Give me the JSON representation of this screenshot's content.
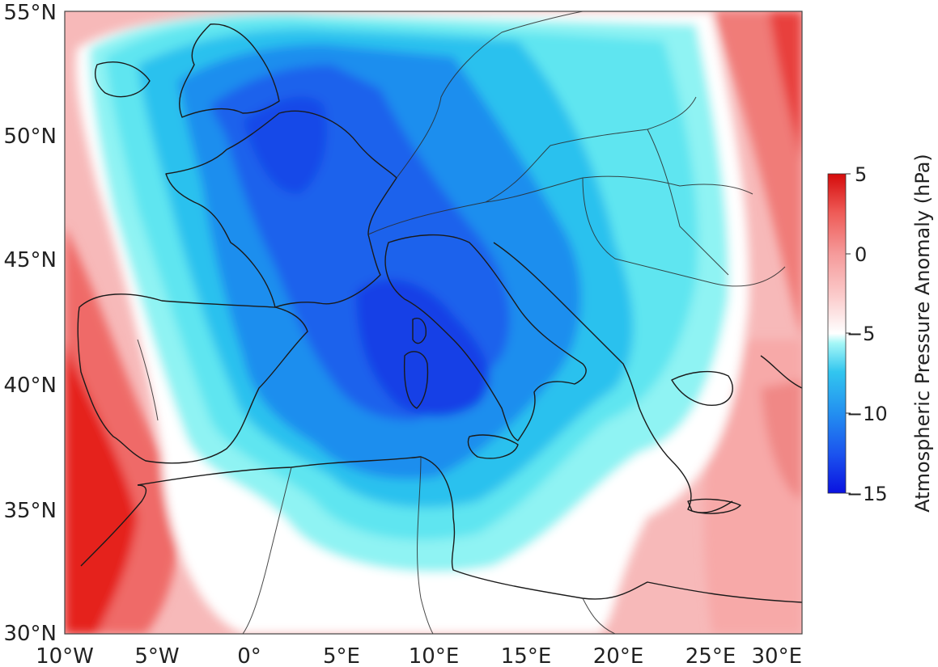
{
  "map": {
    "lat_labels": [
      "55°N",
      "50°N",
      "45°N",
      "40°N",
      "35°N",
      "30°N"
    ],
    "lon_labels": [
      "10°W",
      "5°W",
      "0°",
      "5°E",
      "10°E",
      "15°E",
      "20°E",
      "25°E",
      "30°E"
    ],
    "extent": {
      "lon": [
        -10,
        30
      ],
      "lat": [
        30,
        55
      ]
    },
    "field": "atmospheric pressure anomaly (filled contours, hPa)"
  },
  "colorbar": {
    "label": "Atmospheric Pressure Anomaly (hPa)",
    "ticks": [
      "5",
      "0",
      "−5",
      "−10",
      "−15"
    ],
    "range": [
      -15,
      5
    ],
    "colors": {
      "min": "#0a1fe6",
      "mid_low": "#25a8ee",
      "cyan": "#5fe8f0",
      "zero": "#ffffff",
      "mid_high": "#f59a9a",
      "max": "#e41410"
    }
  }
}
